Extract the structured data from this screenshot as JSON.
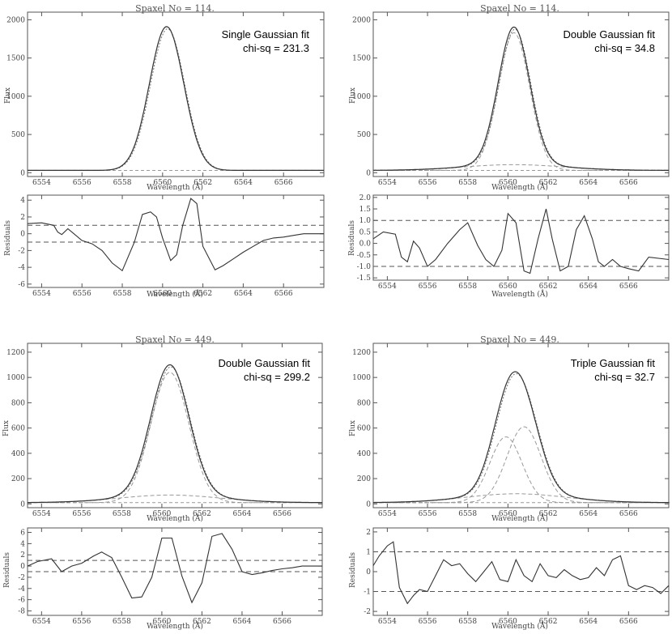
{
  "colors": {
    "data": "#333333",
    "model": "#777777",
    "component": "#999999",
    "frame": "#555555"
  },
  "chart_data": [
    {
      "type": "line",
      "title": "Spaxel No = 114.",
      "xlabel": "Wavelength (Å)",
      "ylabel": "Flux",
      "xlim": [
        6553.3,
        6568.0
      ],
      "ylim": [
        -50,
        2100
      ],
      "xticks": [
        "6554",
        "6556",
        "6558",
        "6560",
        "6562",
        "6564",
        "6566"
      ],
      "yticks": [
        "0",
        "500",
        "1000",
        "1500",
        "2000"
      ],
      "annotation": [
        "Single Gaussian fit",
        "chi-sq = 231.3"
      ],
      "profile": {
        "continuum": 30,
        "components": [
          {
            "amp": 1880,
            "center": 6560.2,
            "sigma": 0.85
          }
        ]
      },
      "residuals": {
        "ylabel": "Residuals",
        "ylim": [
          -6.4,
          4.6
        ],
        "yticks": [
          "4",
          "2",
          "0",
          "-2",
          "-4",
          "-6"
        ],
        "dashed": [
          1,
          -1
        ],
        "x": [
          6553.3,
          6554.0,
          6554.6,
          6554.8,
          6555.0,
          6555.3,
          6555.6,
          6556.0,
          6556.5,
          6557.0,
          6557.5,
          6558.0,
          6558.6,
          6559.0,
          6559.4,
          6559.7,
          6560.0,
          6560.4,
          6560.7,
          6561.0,
          6561.4,
          6561.7,
          6562.0,
          6562.6,
          6563.0,
          6563.5,
          6564.0,
          6564.5,
          6565.0,
          6565.5,
          6566.0,
          6566.5,
          6567.0,
          6568.0
        ],
        "values": [
          1.2,
          1.3,
          1.0,
          0.2,
          -0.1,
          0.6,
          0.0,
          -0.8,
          -1.2,
          -2.0,
          -3.5,
          -4.4,
          -1.0,
          2.3,
          2.6,
          2.0,
          -0.5,
          -3.2,
          -2.5,
          1.0,
          4.2,
          3.6,
          -1.5,
          -4.3,
          -3.8,
          -3.0,
          -2.2,
          -1.5,
          -0.8,
          -0.5,
          -0.4,
          -0.2,
          0.0,
          0.0
        ]
      }
    },
    {
      "type": "line",
      "title": "Spaxel No = 114.",
      "xlabel": "Wavelength (Å)",
      "ylabel": "Flux",
      "xlim": [
        6553.3,
        6568.0
      ],
      "ylim": [
        -50,
        2100
      ],
      "xticks": [
        "6554",
        "6556",
        "6558",
        "6560",
        "6562",
        "6564",
        "6566"
      ],
      "yticks": [
        "0",
        "500",
        "1000",
        "1500",
        "2000"
      ],
      "annotation": [
        "Double Gaussian fit",
        "chi-sq = 34.8"
      ],
      "profile": {
        "continuum": 30,
        "components": [
          {
            "amp": 1800,
            "center": 6560.3,
            "sigma": 0.78
          },
          {
            "amp": 75,
            "center": 6560.3,
            "sigma": 2.5
          }
        ]
      },
      "residuals": {
        "ylabel": "Residuals",
        "ylim": [
          -1.6,
          2.1
        ],
        "yticks": [
          "2.0",
          "1.5",
          "1.0",
          "0.5",
          "0.0",
          "-0.5",
          "-1.0",
          "-1.5"
        ],
        "dashed": [
          1,
          -1
        ],
        "x": [
          6553.3,
          6553.8,
          6554.4,
          6554.7,
          6555.0,
          6555.3,
          6555.6,
          6556.0,
          6556.4,
          6557.0,
          6557.6,
          6558.0,
          6558.5,
          6558.9,
          6559.3,
          6559.7,
          6560.0,
          6560.4,
          6560.8,
          6561.1,
          6561.5,
          6561.9,
          6562.2,
          6562.6,
          6563.0,
          6563.4,
          6563.8,
          6564.2,
          6564.5,
          6564.8,
          6565.2,
          6565.6,
          6566.0,
          6566.5,
          6567.0,
          6568.0
        ],
        "values": [
          0.2,
          0.5,
          0.4,
          -0.6,
          -0.8,
          0.1,
          -0.2,
          -1.0,
          -0.7,
          0.0,
          0.6,
          0.9,
          -0.1,
          -0.7,
          -1.0,
          -0.3,
          1.3,
          0.9,
          -1.2,
          -1.3,
          0.2,
          1.5,
          0.2,
          -1.2,
          -1.0,
          0.6,
          1.2,
          0.2,
          -0.8,
          -1.0,
          -0.7,
          -1.0,
          -1.1,
          -1.2,
          -0.6,
          -0.7
        ]
      }
    },
    {
      "type": "line",
      "title": "Spaxel No = 449.",
      "xlabel": "Wavelength (Å)",
      "ylabel": "Flux",
      "xlim": [
        6553.3,
        6568.0
      ],
      "ylim": [
        -30,
        1270
      ],
      "xticks": [
        "6554",
        "6556",
        "6558",
        "6560",
        "6562",
        "6564",
        "6566"
      ],
      "yticks": [
        "0",
        "200",
        "400",
        "600",
        "800",
        "1000",
        "1200"
      ],
      "annotation": [
        "Double Gaussian fit",
        "chi-sq = 299.2"
      ],
      "profile": {
        "continuum": 10,
        "components": [
          {
            "amp": 1030,
            "center": 6560.4,
            "sigma": 0.95
          },
          {
            "amp": 60,
            "center": 6560.4,
            "sigma": 2.5
          }
        ]
      },
      "residuals": {
        "ylabel": "Residuals",
        "ylim": [
          -8.8,
          6.8
        ],
        "yticks": [
          "6",
          "4",
          "2",
          "0",
          "-2",
          "-4",
          "-6",
          "-8"
        ],
        "dashed": [
          1,
          -1
        ],
        "x": [
          6553.3,
          6553.8,
          6554.5,
          6555.0,
          6555.5,
          6556.0,
          6556.6,
          6557.0,
          6557.5,
          6558.0,
          6558.5,
          6559.0,
          6559.5,
          6560.0,
          6560.5,
          6561.0,
          6561.5,
          6562.0,
          6562.5,
          6563.0,
          6563.5,
          6564.0,
          6564.5,
          6565.0,
          6565.5,
          6566.0,
          6566.5,
          6567.0,
          6568.0
        ],
        "values": [
          0.0,
          0.8,
          1.3,
          -1.0,
          0.0,
          0.5,
          1.8,
          2.5,
          1.5,
          -2.0,
          -5.7,
          -5.5,
          -2.0,
          5.0,
          5.0,
          -1.8,
          -6.5,
          -3.0,
          5.3,
          5.8,
          3.0,
          -1.0,
          -1.5,
          -1.2,
          -0.8,
          -0.5,
          -0.3,
          0.0,
          0.0
        ]
      }
    },
    {
      "type": "line",
      "title": "Spaxel No = 449.",
      "xlabel": "Wavelength (Å)",
      "ylabel": "Flux",
      "xlim": [
        6553.3,
        6568.0
      ],
      "ylim": [
        -30,
        1270
      ],
      "xticks": [
        "6554",
        "6556",
        "6558",
        "6560",
        "6562",
        "6564",
        "6566"
      ],
      "yticks": [
        "0",
        "200",
        "400",
        "600",
        "800",
        "1000",
        "1200"
      ],
      "annotation": [
        "Triple Gaussian fit",
        "chi-sq = 32.7"
      ],
      "profile": {
        "continuum": 10,
        "components": [
          {
            "amp": 520,
            "center": 6559.9,
            "sigma": 0.8
          },
          {
            "amp": 600,
            "center": 6560.8,
            "sigma": 0.85
          },
          {
            "amp": 70,
            "center": 6560.4,
            "sigma": 2.5
          }
        ]
      },
      "residuals": {
        "ylabel": "Residuals",
        "ylim": [
          -2.2,
          2.2
        ],
        "yticks": [
          "2",
          "1",
          "0",
          "-1",
          "-2"
        ],
        "dashed": [
          1,
          -1
        ],
        "x": [
          6553.3,
          6553.6,
          6554.0,
          6554.3,
          6554.6,
          6555.0,
          6555.3,
          6555.6,
          6556.0,
          6556.4,
          6556.8,
          6557.2,
          6557.6,
          6558.0,
          6558.4,
          6558.8,
          6559.2,
          6559.6,
          6560.0,
          6560.4,
          6560.8,
          6561.2,
          6561.6,
          6562.0,
          6562.4,
          6562.8,
          6563.2,
          6563.6,
          6564.0,
          6564.4,
          6564.8,
          6565.2,
          6565.6,
          6566.0,
          6566.4,
          6566.8,
          6567.2,
          6567.6,
          6568.0
        ],
        "values": [
          0.3,
          0.8,
          1.3,
          1.5,
          -0.8,
          -1.6,
          -1.2,
          -0.9,
          -1.0,
          -0.2,
          0.6,
          0.3,
          0.4,
          -0.1,
          -0.5,
          0.0,
          0.5,
          -0.4,
          -0.5,
          0.6,
          -0.2,
          -0.5,
          0.4,
          -0.2,
          -0.3,
          0.1,
          -0.2,
          -0.4,
          -0.3,
          0.2,
          -0.2,
          0.6,
          0.8,
          -0.7,
          -0.9,
          -0.7,
          -0.8,
          -1.1,
          -0.7
        ]
      }
    }
  ]
}
